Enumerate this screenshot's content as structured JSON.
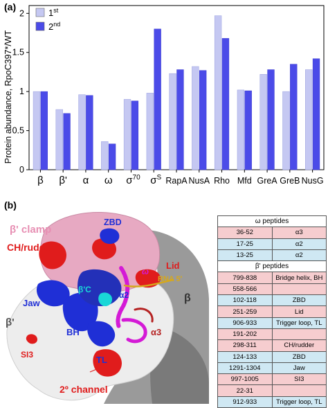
{
  "panel_a_label": "(a)",
  "panel_b_label": "(b)",
  "chart_data": {
    "type": "bar",
    "ylabel": "Protein abundance, RpoC397*/WT",
    "ylim": [
      0,
      2.1
    ],
    "yticks": [
      "0",
      "0.5",
      "1",
      "1.5",
      "2"
    ],
    "categories": [
      "β",
      "β'",
      "α",
      "ω",
      "σ70",
      "σS",
      "RapA",
      "NusA",
      "Rho",
      "Mfd",
      "GreA",
      "GreB",
      "NusG"
    ],
    "category_labels": [
      {
        "base": "β",
        "sup": ""
      },
      {
        "base": "β'",
        "sup": ""
      },
      {
        "base": "α",
        "sup": ""
      },
      {
        "base": "ω",
        "sup": ""
      },
      {
        "base": "σ",
        "sup": "70"
      },
      {
        "base": "σ",
        "sup": "S"
      },
      {
        "base": "RapA",
        "sup": ""
      },
      {
        "base": "NusA",
        "sup": ""
      },
      {
        "base": "Rho",
        "sup": ""
      },
      {
        "base": "Mfd",
        "sup": ""
      },
      {
        "base": "GreA",
        "sup": ""
      },
      {
        "base": "GreB",
        "sup": ""
      },
      {
        "base": "NusG",
        "sup": ""
      }
    ],
    "series": [
      {
        "name": "1st",
        "name_base": "1",
        "name_sup": "st",
        "color": "#c5c8f2",
        "values": [
          1.0,
          0.77,
          0.96,
          0.36,
          0.9,
          0.98,
          1.23,
          1.32,
          1.97,
          1.02,
          1.22,
          1.0,
          1.28
        ]
      },
      {
        "name": "2nd",
        "name_base": "2",
        "name_sup": "nd",
        "color": "#4b4be8",
        "values": [
          1.0,
          0.72,
          0.95,
          0.33,
          0.88,
          1.8,
          1.28,
          1.27,
          1.68,
          1.01,
          1.28,
          1.35,
          1.42
        ]
      }
    ],
    "legend_position": "top-left",
    "grid": false
  },
  "structure": {
    "labels": {
      "beta_prime_clamp": "β' clamp",
      "ch_rudder": "CH/rudder",
      "zbd": "ZBD",
      "lid": "Lid",
      "rna5": "RNA 5'",
      "omega": "ω",
      "beta_prime_c": "β'C",
      "alpha2": "α2",
      "beta": "β",
      "jaw": "Jaw",
      "beta_prime": "β'",
      "bh": "BH",
      "alpha3": "α3",
      "si3": "SI3",
      "tl": "TL",
      "secondary_channel": "2º channel"
    },
    "colors": {
      "pink": "#e7a9c2",
      "red": "#e01c1c",
      "blue": "#1f2fd6",
      "magenta": "#d41ad6",
      "cyan": "#19d7d7",
      "white": "#eeeeee",
      "grey": "#8a8a8a",
      "yellow": "#d6a81c",
      "darkred": "#b52222"
    }
  },
  "peptide_table": {
    "omega_header": "ω peptides",
    "omega_rows": [
      {
        "range": "36-52",
        "region": "α3",
        "color": "pink"
      },
      {
        "range": "17-25",
        "region": "α2",
        "color": "blue"
      },
      {
        "range": "13-25",
        "region": "α2",
        "color": "blue"
      }
    ],
    "beta_prime_header": "β' peptides",
    "beta_prime_rows": [
      {
        "range": "799-838",
        "region": "Bridge helix, BH",
        "color": "pink"
      },
      {
        "range": "558-566",
        "region": "",
        "color": "pink"
      },
      {
        "range": "102-118",
        "region": "ZBD",
        "color": "blue"
      },
      {
        "range": "251-259",
        "region": "Lid",
        "color": "pink"
      },
      {
        "range": "906-933",
        "region": "Trigger loop, TL",
        "color": "blue"
      },
      {
        "range": "191-202",
        "region": "",
        "color": "pink"
      },
      {
        "range": "298-311",
        "region": "CH/rudder",
        "color": "pink"
      },
      {
        "range": "124-133",
        "region": "ZBD",
        "color": "blue"
      },
      {
        "range": "1291-1304",
        "region": "Jaw",
        "color": "blue"
      },
      {
        "range": "997-1005",
        "region": "SI3",
        "color": "pink"
      },
      {
        "range": "22-31",
        "region": "",
        "color": "pink"
      },
      {
        "range": "912-933",
        "region": "Trigger loop, TL",
        "color": "blue"
      }
    ]
  }
}
